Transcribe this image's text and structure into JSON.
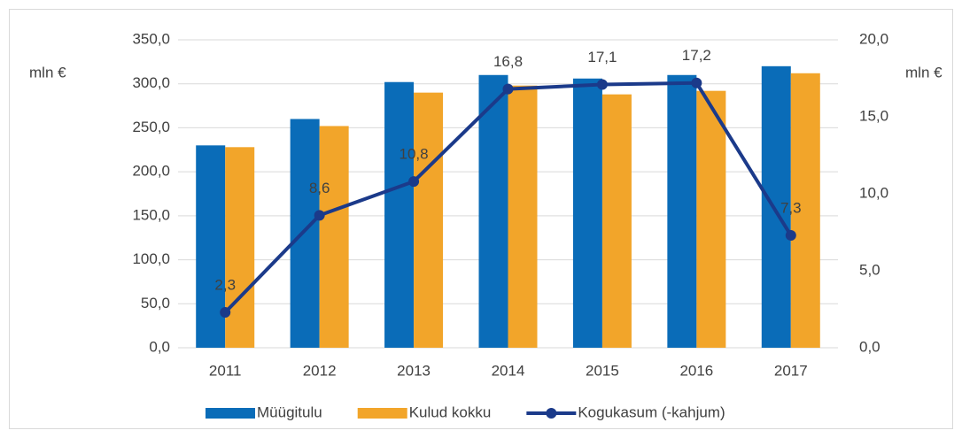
{
  "chart_data": {
    "type": "bar",
    "categories": [
      "2011",
      "2012",
      "2013",
      "2014",
      "2015",
      "2016",
      "2017"
    ],
    "y_label": "mln €",
    "y2_label": "mln €",
    "series": [
      {
        "name": "Müügitulu",
        "color": "#0a6cb8",
        "values": [
          230,
          260,
          302,
          310,
          306,
          310,
          320
        ]
      },
      {
        "name": "Kulud kokku",
        "color": "#f2a52a",
        "values": [
          228,
          252,
          290,
          298,
          288,
          292,
          312
        ]
      },
      {
        "name": "Kogukasum (-kahjum)",
        "type": "line",
        "axis": "y2",
        "color": "#1b3a8a",
        "values": [
          2.3,
          8.6,
          10.8,
          16.8,
          17.1,
          17.2,
          7.3
        ],
        "value_labels": [
          "2,3",
          "8,6",
          "10,8",
          "16,8",
          "17,1",
          "17,2",
          "7,3"
        ]
      }
    ],
    "ylim": [
      0,
      350
    ],
    "yticks": [
      {
        "value": 0,
        "label": "0,0"
      },
      {
        "value": 50,
        "label": "50,0"
      },
      {
        "value": 100,
        "label": "100,0"
      },
      {
        "value": 150,
        "label": "150,0"
      },
      {
        "value": 200,
        "label": "200,0"
      },
      {
        "value": 250,
        "label": "250,0"
      },
      {
        "value": 300,
        "label": "300,0"
      },
      {
        "value": 350,
        "label": "350,0"
      }
    ],
    "y2lim": [
      0,
      20
    ],
    "y2ticks": [
      {
        "value": 0,
        "label": "0,0"
      },
      {
        "value": 5,
        "label": "5,0"
      },
      {
        "value": 10,
        "label": "10,0"
      },
      {
        "value": 15,
        "label": "15,0"
      },
      {
        "value": 20,
        "label": "20,0"
      }
    ],
    "grid": true,
    "legend": "bottom"
  }
}
